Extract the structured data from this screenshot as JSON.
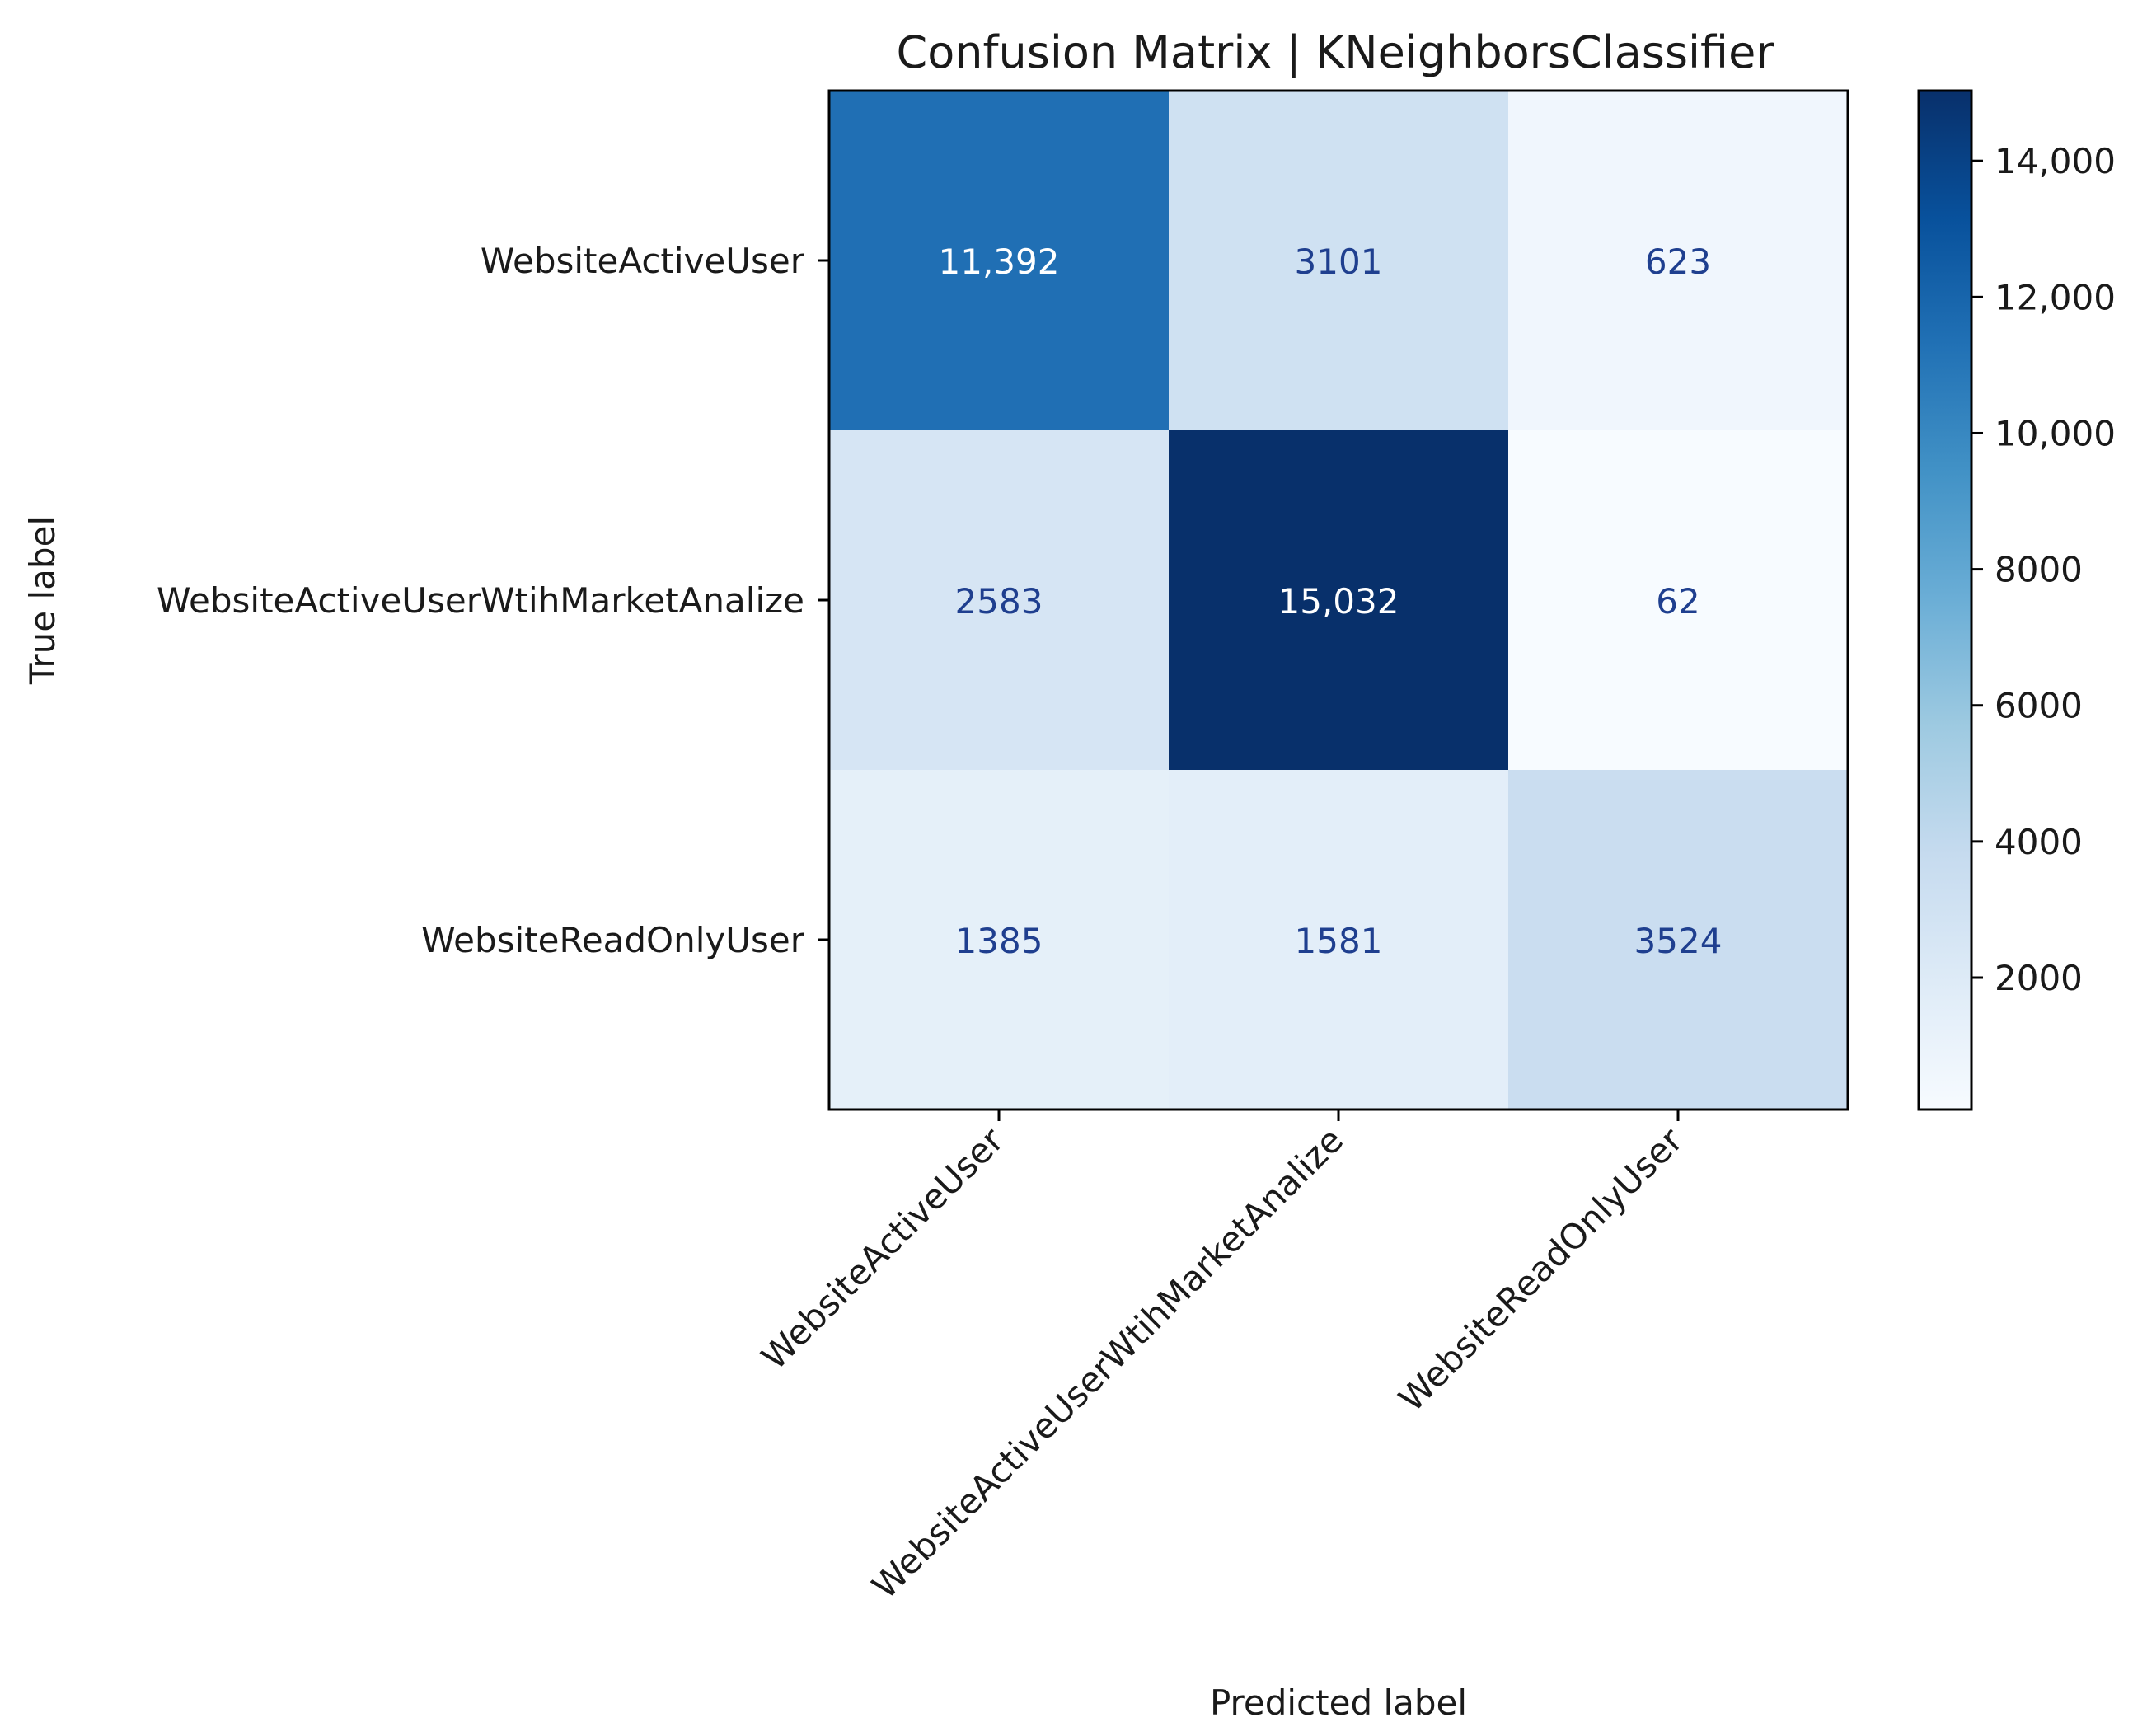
{
  "chart_data": {
    "type": "heatmap",
    "title": "Confusion Matrix | KNeighborsClassifier",
    "xlabel": "Predicted label",
    "ylabel": "True label",
    "row_labels": [
      "WebsiteActiveUser",
      "WebsiteActiveUserWtihMarketAnalize",
      "WebsiteReadOnlyUser"
    ],
    "col_labels": [
      "WebsiteActiveUser",
      "WebsiteActiveUserWtihMarketAnalize",
      "WebsiteReadOnlyUser"
    ],
    "values": [
      [
        11392,
        3101,
        623
      ],
      [
        2583,
        15032,
        62
      ],
      [
        1385,
        1581,
        3524
      ]
    ],
    "cell_labels": [
      [
        "11,392",
        "3101",
        "623"
      ],
      [
        "2583",
        "15,032",
        "62"
      ],
      [
        "1385",
        "1581",
        "3524"
      ]
    ],
    "colormap": "Blues",
    "colorbar": {
      "min": 62,
      "max": 15032,
      "ticks": [
        2000,
        4000,
        6000,
        8000,
        10000,
        12000,
        14000
      ],
      "tick_labels": [
        "2000",
        "4000",
        "6000",
        "8000",
        "10,000",
        "12,000",
        "14,000"
      ]
    },
    "text_colors": {
      "dark_cell": "#ffffff",
      "light_cell": "#1f3f8f"
    }
  }
}
